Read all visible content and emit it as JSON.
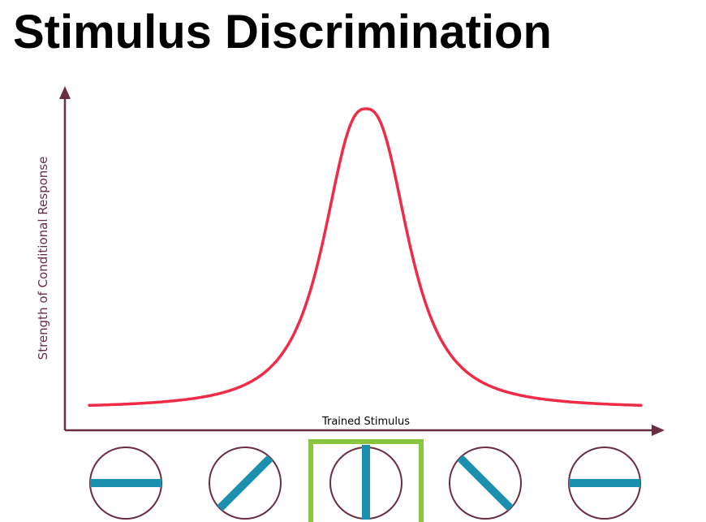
{
  "title": "Stimulus Discrimination",
  "y_axis_label": "Strength of Conditional Response",
  "x_axis_label": "Trained Stimulus",
  "colors": {
    "curve": "#ef2b48",
    "axis": "#6b2e3e",
    "stimulus_line": "#1a8fae",
    "circle_outline": "#6b2e3e",
    "highlight_box": "#8cc63f"
  },
  "stimuli": [
    {
      "name": "horizontal-stimulus-left",
      "orientation": "horizontal",
      "trained": false
    },
    {
      "name": "diagonal-right-stimulus",
      "orientation": "diagonal-up",
      "trained": false
    },
    {
      "name": "vertical-trained-stimulus",
      "orientation": "vertical",
      "trained": true
    },
    {
      "name": "diagonal-left-stimulus",
      "orientation": "diagonal-down",
      "trained": false
    },
    {
      "name": "horizontal-stimulus-right",
      "orientation": "horizontal",
      "trained": false
    }
  ]
}
